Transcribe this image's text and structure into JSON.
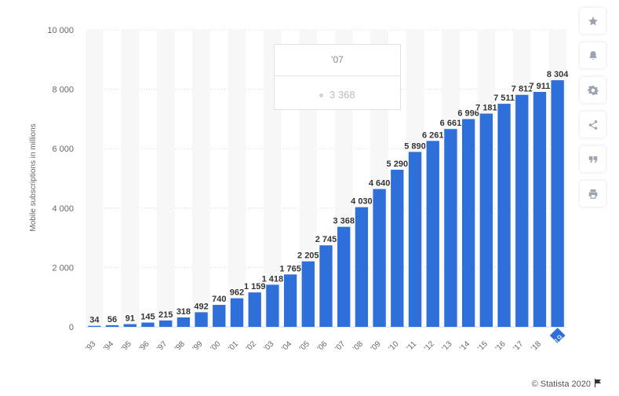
{
  "chart_data": {
    "type": "bar",
    "categories": [
      "'93",
      "'94",
      "'95",
      "'96",
      "'97",
      "'98",
      "'99",
      "'00",
      "'01",
      "'02",
      "'03",
      "'04",
      "'05",
      "'06",
      "'07",
      "'08",
      "'09",
      "'10",
      "'11",
      "'12",
      "'13",
      "'14",
      "'15",
      "'16",
      "'17",
      "'18",
      "'19"
    ],
    "values": [
      34,
      56,
      91,
      145,
      215,
      318,
      492,
      740,
      962,
      1159,
      1418,
      1765,
      2205,
      2745,
      3368,
      4030,
      4640,
      5290,
      5890,
      6261,
      6661,
      6996,
      7181,
      7511,
      7811,
      7911,
      8304
    ],
    "value_labels": [
      "34",
      "56",
      "91",
      "145",
      "215",
      "318",
      "492",
      "740",
      "962",
      "1 159",
      "1 418",
      "1 765",
      "2 205",
      "2 745",
      "3 368",
      "4 030",
      "4 640",
      "5 290",
      "5 890",
      "6 261",
      "6 661",
      "6 996",
      "7 181",
      "7 511",
      "7 811",
      "7 911",
      "8 304"
    ],
    "ylabel": "Mobile subscriptions in millions",
    "ylim": [
      0,
      10000
    ],
    "yticks": [
      0,
      2000,
      4000,
      6000,
      8000,
      10000
    ],
    "ytick_labels": [
      "0",
      "2 000",
      "4 000",
      "6 000",
      "8 000",
      "10 000"
    ],
    "grid": true,
    "bar_color": "#2f6fd9",
    "highlight_index": 26,
    "highlight_color": "#2f6fd9"
  },
  "tooltip": {
    "category": "'07",
    "value": "3 368"
  },
  "sidebar": {
    "buttons": [
      {
        "icon": "star-icon"
      },
      {
        "icon": "bell-icon"
      },
      {
        "icon": "gear-icon"
      },
      {
        "icon": "share-icon"
      },
      {
        "icon": "quote-icon"
      },
      {
        "icon": "print-icon"
      }
    ]
  },
  "credit": {
    "text": "© Statista 2020"
  }
}
